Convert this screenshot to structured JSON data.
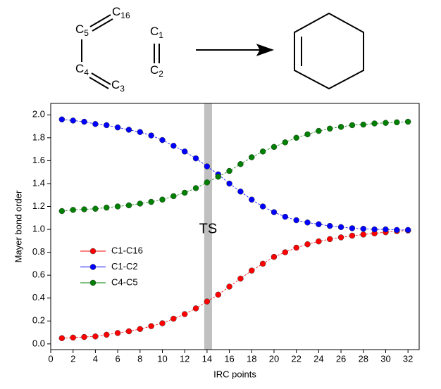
{
  "scheme": {
    "atoms": [
      {
        "symbol": "C",
        "index": "5"
      },
      {
        "symbol": "C",
        "index": "16"
      },
      {
        "symbol": "C",
        "index": "4"
      },
      {
        "symbol": "C",
        "index": "3"
      },
      {
        "symbol": "C",
        "index": "1"
      },
      {
        "symbol": "C",
        "index": "2"
      }
    ]
  },
  "chart_data": {
    "type": "line",
    "xlabel": "IRC points",
    "ylabel": "Mayer bond order",
    "x": [
      1,
      2,
      3,
      4,
      5,
      6,
      7,
      8,
      9,
      10,
      11,
      12,
      13,
      14,
      15,
      16,
      17,
      18,
      19,
      20,
      21,
      22,
      23,
      24,
      25,
      26,
      27,
      28,
      29,
      30,
      31,
      32
    ],
    "series": [
      {
        "name": "C1-C16",
        "color": "#ff0000",
        "values": [
          0.05,
          0.055,
          0.06,
          0.065,
          0.08,
          0.095,
          0.11,
          0.13,
          0.155,
          0.18,
          0.22,
          0.26,
          0.31,
          0.37,
          0.43,
          0.5,
          0.57,
          0.64,
          0.7,
          0.76,
          0.8,
          0.84,
          0.87,
          0.895,
          0.915,
          0.93,
          0.945,
          0.955,
          0.965,
          0.975,
          0.985,
          0.99
        ]
      },
      {
        "name": "C1-C2",
        "color": "#0000ff",
        "values": [
          1.96,
          1.95,
          1.94,
          1.92,
          1.91,
          1.89,
          1.87,
          1.85,
          1.82,
          1.78,
          1.73,
          1.68,
          1.62,
          1.55,
          1.48,
          1.4,
          1.33,
          1.26,
          1.2,
          1.15,
          1.11,
          1.08,
          1.06,
          1.045,
          1.03,
          1.02,
          1.01,
          1.005,
          1.0,
          1.0,
          0.995,
          0.995
        ]
      },
      {
        "name": "C4-C5",
        "color": "#008000",
        "values": [
          1.16,
          1.17,
          1.175,
          1.18,
          1.19,
          1.2,
          1.21,
          1.225,
          1.24,
          1.26,
          1.29,
          1.32,
          1.36,
          1.41,
          1.46,
          1.51,
          1.57,
          1.63,
          1.68,
          1.72,
          1.76,
          1.8,
          1.83,
          1.86,
          1.88,
          1.895,
          1.91,
          1.915,
          1.925,
          1.93,
          1.935,
          1.94
        ]
      }
    ],
    "xlim": [
      0,
      33
    ],
    "ylim": [
      -0.05,
      2.1
    ],
    "xticks": [
      0,
      2,
      4,
      6,
      8,
      10,
      12,
      14,
      16,
      18,
      20,
      22,
      24,
      26,
      28,
      30,
      32
    ],
    "yticks": [
      {
        "value": 0,
        "label": "0.0"
      },
      0.2,
      0.4,
      0.6,
      0.8,
      {
        "value": 1,
        "label": "1.0"
      },
      1.2,
      1.4,
      1.6,
      1.8,
      {
        "value": 2,
        "label": "2.0"
      }
    ],
    "legend": "center-left",
    "annotation": {
      "text": "TS",
      "xrange": [
        13.75,
        14.45
      ],
      "color": "#c0c0c0"
    }
  }
}
